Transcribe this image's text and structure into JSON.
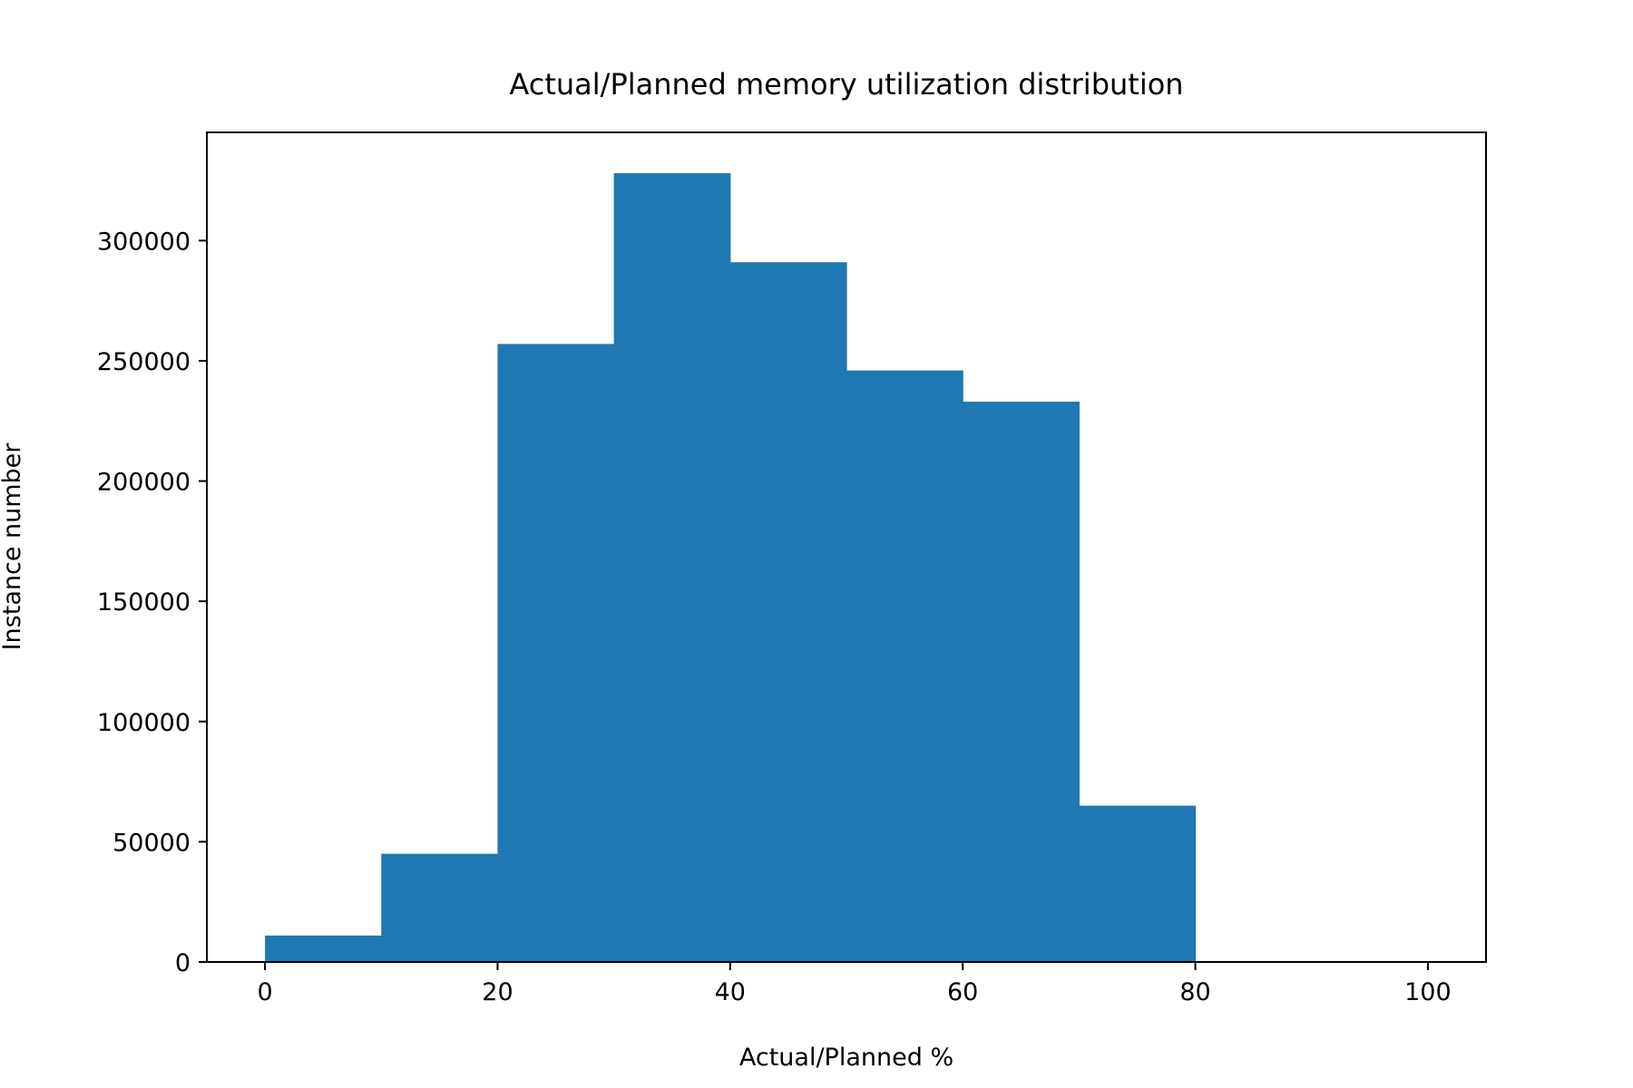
{
  "chart_data": {
    "type": "bar",
    "title": "Actual/Planned memory utilization distribution",
    "xlabel": "Actual/Planned %",
    "ylabel": "Instance number",
    "bins": [
      {
        "x0": 0,
        "x1": 10,
        "count": 11000
      },
      {
        "x0": 10,
        "x1": 20,
        "count": 45000
      },
      {
        "x0": 20,
        "x1": 30,
        "count": 257000
      },
      {
        "x0": 30,
        "x1": 40,
        "count": 328000
      },
      {
        "x0": 40,
        "x1": 50,
        "count": 291000
      },
      {
        "x0": 50,
        "x1": 60,
        "count": 246000
      },
      {
        "x0": 60,
        "x1": 70,
        "count": 233000
      },
      {
        "x0": 70,
        "x1": 80,
        "count": 65000
      },
      {
        "x0": 80,
        "x1": 90,
        "count": 0
      },
      {
        "x0": 90,
        "x1": 100,
        "count": 0
      }
    ],
    "xlim": [
      -5,
      105
    ],
    "ylim": [
      0,
      345000
    ],
    "xticks": [
      0,
      20,
      40,
      60,
      80,
      100
    ],
    "yticks": [
      0,
      50000,
      100000,
      150000,
      200000,
      250000,
      300000
    ],
    "bar_color": "#1f77b4",
    "grid": false,
    "legend": "none"
  }
}
